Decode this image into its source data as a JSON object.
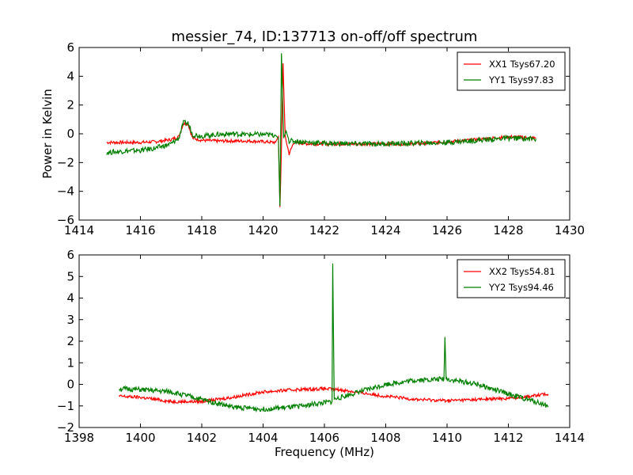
{
  "figure": {
    "title": "messier_74, ID:137713 on-off/off spectrum",
    "ylabel": "Power in Kelvin",
    "xlabel": "Frequency (MHz)"
  },
  "colors": {
    "xx": "#ff0000",
    "yy": "#008000"
  },
  "chart_data": [
    {
      "type": "line",
      "title": "messier_74, ID:137713 on-off/off spectrum",
      "xlabel": "",
      "ylabel": "Power in Kelvin",
      "xlim": [
        1414,
        1430
      ],
      "ylim": [
        -6,
        6
      ],
      "xticks": [
        "1414",
        "1416",
        "1418",
        "1420",
        "1422",
        "1424",
        "1426",
        "1428",
        "1430"
      ],
      "yticks": [
        "6",
        "4",
        "2",
        "0",
        "−2",
        "−4",
        "−6"
      ],
      "grid": false,
      "legend": {
        "placement": "top-right"
      },
      "series": [
        {
          "name": "XX1 Tsys67.20",
          "color": "#ff0000",
          "points": [
            [
              1414.9,
              -0.6
            ],
            [
              1415.5,
              -0.6
            ],
            [
              1416.0,
              -0.6
            ],
            [
              1416.5,
              -0.55
            ],
            [
              1417.0,
              -0.4
            ],
            [
              1417.25,
              -0.2
            ],
            [
              1417.4,
              0.7
            ],
            [
              1417.55,
              0.7
            ],
            [
              1417.7,
              -0.3
            ],
            [
              1418.0,
              -0.45
            ],
            [
              1418.5,
              -0.5
            ],
            [
              1419.0,
              -0.5
            ],
            [
              1419.5,
              -0.5
            ],
            [
              1420.0,
              -0.55
            ],
            [
              1420.4,
              -0.6
            ],
            [
              1420.5,
              -0.2
            ],
            [
              1420.55,
              -5.1
            ],
            [
              1420.6,
              -1.0
            ],
            [
              1420.65,
              4.9
            ],
            [
              1420.72,
              -0.2
            ],
            [
              1420.85,
              -1.4
            ],
            [
              1421.0,
              -0.6
            ],
            [
              1421.5,
              -0.7
            ],
            [
              1422.0,
              -0.7
            ],
            [
              1423.0,
              -0.7
            ],
            [
              1424.0,
              -0.7
            ],
            [
              1425.0,
              -0.7
            ],
            [
              1426.0,
              -0.55
            ],
            [
              1427.0,
              -0.4
            ],
            [
              1428.0,
              -0.2
            ],
            [
              1428.9,
              -0.3
            ]
          ]
        },
        {
          "name": "YY1 Tsys97.83",
          "color": "#008000",
          "points": [
            [
              1414.9,
              -1.3
            ],
            [
              1415.5,
              -1.2
            ],
            [
              1416.0,
              -1.15
            ],
            [
              1416.5,
              -1.0
            ],
            [
              1417.0,
              -0.7
            ],
            [
              1417.25,
              -0.3
            ],
            [
              1417.4,
              0.75
            ],
            [
              1417.55,
              0.75
            ],
            [
              1417.7,
              -0.05
            ],
            [
              1418.0,
              -0.15
            ],
            [
              1418.5,
              -0.05
            ],
            [
              1419.0,
              0.0
            ],
            [
              1419.5,
              -0.05
            ],
            [
              1420.0,
              -0.05
            ],
            [
              1420.4,
              -0.1
            ],
            [
              1420.5,
              -0.3
            ],
            [
              1420.55,
              -5.0
            ],
            [
              1420.6,
              5.6
            ],
            [
              1420.67,
              -0.3
            ],
            [
              1420.75,
              0.2
            ],
            [
              1420.85,
              -0.5
            ],
            [
              1421.0,
              -0.5
            ],
            [
              1421.5,
              -0.6
            ],
            [
              1422.0,
              -0.65
            ],
            [
              1423.0,
              -0.7
            ],
            [
              1424.0,
              -0.7
            ],
            [
              1425.0,
              -0.65
            ],
            [
              1426.0,
              -0.6
            ],
            [
              1427.0,
              -0.45
            ],
            [
              1428.0,
              -0.3
            ],
            [
              1428.9,
              -0.35
            ]
          ]
        }
      ]
    },
    {
      "type": "line",
      "title": "",
      "xlabel": "Frequency (MHz)",
      "ylabel": "",
      "xlim": [
        1398,
        1414
      ],
      "ylim": [
        -2,
        6
      ],
      "xticks": [
        "1398",
        "1400",
        "1402",
        "1404",
        "1406",
        "1408",
        "1410",
        "1412",
        "1414"
      ],
      "yticks": [
        "6",
        "5",
        "4",
        "3",
        "2",
        "1",
        "0",
        "−1",
        "−2"
      ],
      "grid": false,
      "legend": {
        "placement": "top-right"
      },
      "series": [
        {
          "name": "XX2 Tsys54.81",
          "color": "#ff0000",
          "points": [
            [
              1399.3,
              -0.55
            ],
            [
              1400.0,
              -0.6
            ],
            [
              1401.0,
              -0.8
            ],
            [
              1402.0,
              -0.8
            ],
            [
              1403.0,
              -0.6
            ],
            [
              1404.0,
              -0.35
            ],
            [
              1405.0,
              -0.25
            ],
            [
              1406.0,
              -0.2
            ],
            [
              1406.5,
              -0.25
            ],
            [
              1407.0,
              -0.35
            ],
            [
              1408.0,
              -0.55
            ],
            [
              1409.0,
              -0.7
            ],
            [
              1410.0,
              -0.75
            ],
            [
              1411.0,
              -0.7
            ],
            [
              1412.0,
              -0.65
            ],
            [
              1413.0,
              -0.5
            ],
            [
              1413.3,
              -0.45
            ]
          ]
        },
        {
          "name": "YY2 Tsys94.46",
          "color": "#008000",
          "points": [
            [
              1399.3,
              -0.2
            ],
            [
              1400.0,
              -0.25
            ],
            [
              1401.0,
              -0.35
            ],
            [
              1402.0,
              -0.7
            ],
            [
              1403.0,
              -1.05
            ],
            [
              1404.0,
              -1.15
            ],
            [
              1405.0,
              -1.05
            ],
            [
              1406.0,
              -0.85
            ],
            [
              1406.25,
              -0.8
            ],
            [
              1406.27,
              5.6
            ],
            [
              1406.32,
              -0.7
            ],
            [
              1407.0,
              -0.4
            ],
            [
              1408.0,
              0.0
            ],
            [
              1409.0,
              0.2
            ],
            [
              1409.9,
              0.25
            ],
            [
              1409.93,
              2.2
            ],
            [
              1409.97,
              0.25
            ],
            [
              1411.0,
              0.0
            ],
            [
              1412.0,
              -0.45
            ],
            [
              1413.0,
              -0.85
            ],
            [
              1413.3,
              -1.0
            ]
          ]
        }
      ]
    }
  ]
}
